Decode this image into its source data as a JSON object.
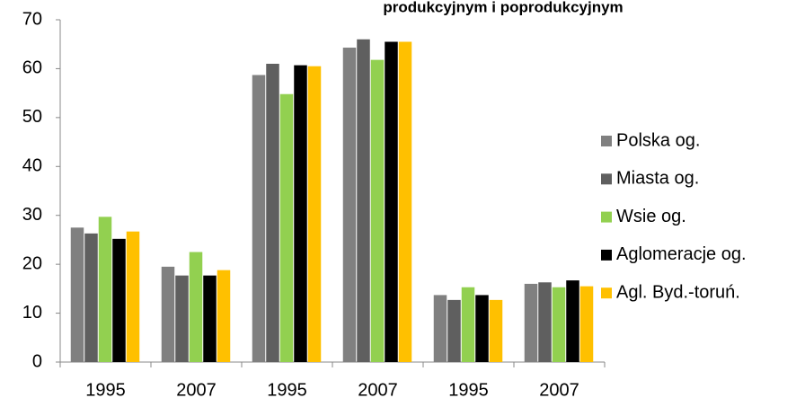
{
  "chart_data": {
    "type": "bar",
    "title": "produkcyjnym i poprodukcyjnym",
    "categories": [
      "1995",
      "2007",
      "1995",
      "2007",
      "1995",
      "2007"
    ],
    "series": [
      {
        "name": "Polska og.",
        "color": "#808080",
        "values": [
          27.5,
          19.5,
          58.7,
          64.3,
          13.7,
          16
        ]
      },
      {
        "name": "Miasta og.",
        "color": "#5f5f5f",
        "values": [
          26.3,
          17.7,
          61,
          66,
          12.7,
          16.3
        ]
      },
      {
        "name": "Wsie og.",
        "color": "#92d050",
        "values": [
          29.7,
          22.5,
          54.8,
          61.8,
          15.3,
          15.3
        ]
      },
      {
        "name": "Aglomeracje og.",
        "color": "#000000",
        "values": [
          25.2,
          17.7,
          60.7,
          65.5,
          13.7,
          16.7
        ]
      },
      {
        "name": "Agl. Byd.-toruń.",
        "color": "#ffc000",
        "values": [
          26.7,
          18.8,
          60.5,
          65.5,
          12.7,
          15.5
        ]
      }
    ],
    "ylim": [
      0,
      70
    ],
    "yticks": [
      0,
      10,
      20,
      30,
      40,
      50,
      60,
      70
    ],
    "grid": false,
    "legend": "right"
  }
}
